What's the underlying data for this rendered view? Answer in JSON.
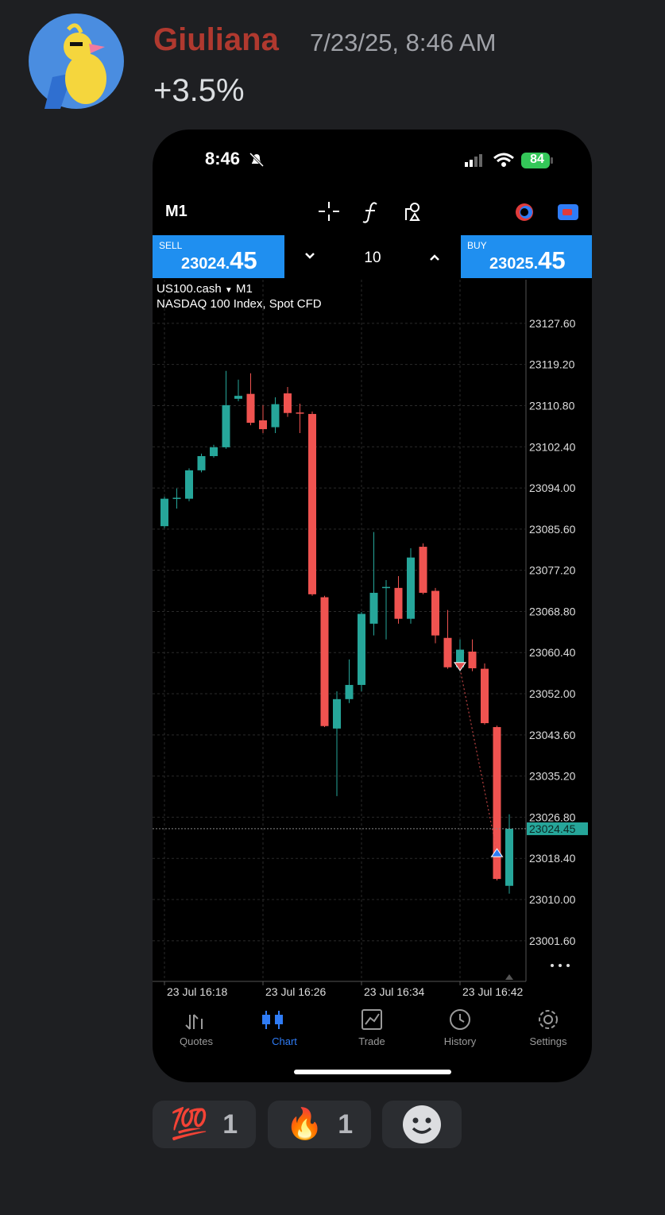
{
  "message": {
    "author": "Giuliana",
    "timestamp": "7/23/25, 8:46 AM",
    "text": "+3.5%"
  },
  "phone": {
    "status": {
      "time": "8:46",
      "battery": "84"
    },
    "toolbar": {
      "timeframe": "M1"
    },
    "sell": {
      "label": "SELL",
      "price_main": "23024.",
      "price_frac": "45"
    },
    "volume": "10",
    "buy": {
      "label": "BUY",
      "price_main": "23025.",
      "price_frac": "45"
    },
    "symbol": "US100.cash",
    "symbol_timeframe": "M1",
    "description": "NASDAQ 100 Index, Spot CFD",
    "nav": [
      {
        "label": "Quotes"
      },
      {
        "label": "Chart"
      },
      {
        "label": "Trade"
      },
      {
        "label": "History"
      },
      {
        "label": "Settings"
      }
    ]
  },
  "chart_data": {
    "type": "candlestick",
    "categories": [
      "23 Jul 16:18",
      null,
      null,
      null,
      null,
      null,
      null,
      null,
      "23 Jul 16:26",
      null,
      null,
      null,
      null,
      null,
      null,
      null,
      "23 Jul 16:34",
      null,
      null,
      null,
      null,
      null,
      null,
      null,
      "23 Jul 16:42",
      null,
      null,
      null,
      null
    ],
    "open": [
      23086.2,
      23091.8,
      23091.8,
      23097.6,
      23100.5,
      23102.3,
      23112.2,
      23113.2,
      23107.8,
      23106.4,
      23113.3,
      23109.4,
      23109.1,
      23071.7,
      23044.9,
      23050.9,
      23053.8,
      23066.3,
      23073.6,
      23073.6,
      23067.3,
      23082.0,
      23073.0,
      23063.4,
      23057.4,
      23060.6,
      23057.1,
      23045.2,
      23012.8
    ],
    "high": [
      23092.2,
      23093.9,
      23098.0,
      23101.0,
      23102.8,
      23117.9,
      23116.1,
      23117.4,
      23110.9,
      23112.5,
      23114.6,
      23111.2,
      23109.6,
      23072.0,
      23052.5,
      23059.0,
      23068.7,
      23085.0,
      23075.2,
      23076.0,
      23081.7,
      23082.7,
      23073.6,
      23069.1,
      23063.1,
      23063.1,
      23058.2,
      23045.5,
      23027.4
    ],
    "low": [
      23085.8,
      23089.8,
      23091.3,
      23097.2,
      23100.2,
      23102.0,
      23111.7,
      23106.8,
      23105.2,
      23105.2,
      23108.5,
      23105.2,
      23072.0,
      23045.2,
      23031.1,
      23050.1,
      23052.5,
      23063.9,
      23063.1,
      23066.3,
      23066.3,
      23072.3,
      23062.3,
      23057.1,
      23056.6,
      23056.6,
      23045.7,
      23013.9,
      23011.2
    ],
    "close": [
      23091.8,
      23092.0,
      23097.6,
      23100.5,
      23102.3,
      23110.9,
      23112.8,
      23107.3,
      23106.0,
      23111.1,
      23109.3,
      23109.2,
      23072.3,
      23045.4,
      23050.9,
      23053.8,
      23068.3,
      23072.6,
      23073.8,
      23067.3,
      23079.8,
      23072.6,
      23063.9,
      23057.4,
      23061.0,
      23057.2,
      23046.0,
      23014.2,
      23024.45
    ],
    "up_color": "#26a69a",
    "down_color": "#ef5350",
    "current_price": 23024.45,
    "ylim": [
      22993.3,
      23136.5
    ],
    "yticks": [
      {
        "value": 23127.6,
        "label": "23127.60"
      },
      {
        "value": 23119.2,
        "label": "23119.20"
      },
      {
        "value": 23110.8,
        "label": "23110.80"
      },
      {
        "value": 23102.4,
        "label": "23102.40"
      },
      {
        "value": 23094,
        "label": "23094.00"
      },
      {
        "value": 23085.6,
        "label": "23085.60"
      },
      {
        "value": 23077.2,
        "label": "23077.20"
      },
      {
        "value": 23068.8,
        "label": "23068.80"
      },
      {
        "value": 23060.4,
        "label": "23060.40"
      },
      {
        "value": 23052,
        "label": "23052.00"
      },
      {
        "value": 23043.6,
        "label": "23043.60"
      },
      {
        "value": 23035.2,
        "label": "23035.20"
      },
      {
        "value": 23026.8,
        "label": "23026.80"
      },
      {
        "value": 23018.4,
        "label": "23018.40"
      },
      {
        "value": 23010,
        "label": "23010.00"
      },
      {
        "value": 23001.6,
        "label": "23001.60"
      }
    ],
    "grid": true
  },
  "reactions": [
    {
      "emoji": "💯",
      "count": 1
    },
    {
      "emoji": "🔥",
      "count": 1
    }
  ]
}
